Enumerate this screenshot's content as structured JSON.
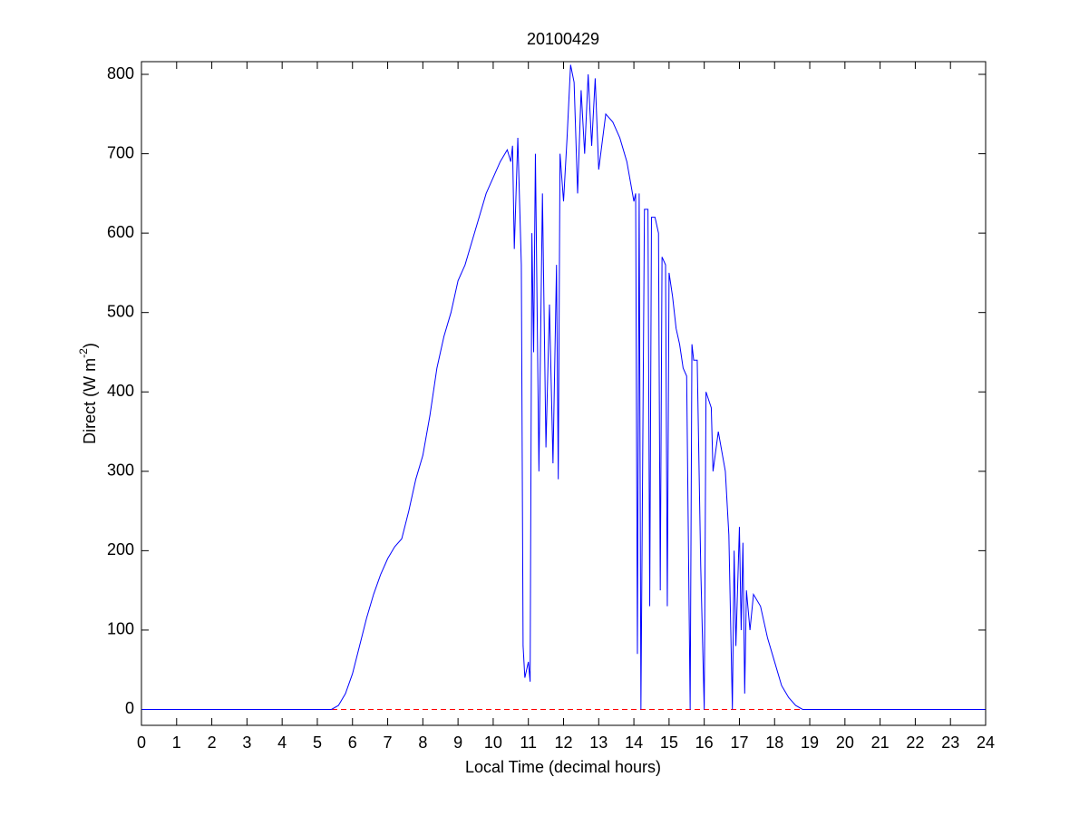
{
  "chart_data": {
    "type": "line",
    "title": "20100429",
    "xlabel": "Local Time (decimal hours)",
    "ylabel": [
      "Direct (W m",
      "-2",
      ")"
    ],
    "x": [
      0,
      1,
      2,
      3,
      4,
      5,
      5.4,
      5.6,
      5.8,
      6.0,
      6.2,
      6.4,
      6.6,
      6.8,
      7.0,
      7.2,
      7.4,
      7.6,
      7.8,
      8.0,
      8.2,
      8.4,
      8.6,
      8.8,
      9.0,
      9.2,
      9.4,
      9.6,
      9.8,
      10.0,
      10.2,
      10.4,
      10.5,
      10.55,
      10.6,
      10.7,
      10.8,
      10.85,
      10.9,
      11.0,
      11.05,
      11.1,
      11.15,
      11.2,
      11.3,
      11.4,
      11.5,
      11.6,
      11.7,
      11.8,
      11.85,
      11.9,
      12.0,
      12.1,
      12.2,
      12.3,
      12.4,
      12.5,
      12.6,
      12.7,
      12.8,
      12.9,
      13.0,
      13.2,
      13.4,
      13.6,
      13.8,
      14.0,
      14.05,
      14.1,
      14.15,
      14.2,
      14.3,
      14.4,
      14.45,
      14.5,
      14.6,
      14.7,
      14.75,
      14.8,
      14.9,
      14.95,
      15.0,
      15.1,
      15.2,
      15.3,
      15.4,
      15.5,
      15.6,
      15.65,
      15.7,
      15.8,
      15.9,
      16.0,
      16.05,
      16.2,
      16.25,
      16.4,
      16.6,
      16.7,
      16.8,
      16.85,
      16.9,
      17.0,
      17.05,
      17.1,
      17.15,
      17.2,
      17.3,
      17.4,
      17.6,
      17.8,
      18.0,
      18.2,
      18.4,
      18.6,
      18.8,
      19,
      20,
      21,
      22,
      23,
      24
    ],
    "series": [
      {
        "color": "#0000ff",
        "values": [
          0,
          0,
          0,
          0,
          0,
          0,
          0,
          5,
          20,
          45,
          80,
          115,
          145,
          170,
          190,
          205,
          215,
          250,
          290,
          320,
          370,
          430,
          470,
          500,
          540,
          560,
          590,
          620,
          650,
          670,
          690,
          705,
          690,
          710,
          580,
          720,
          560,
          80,
          40,
          60,
          35,
          600,
          450,
          700,
          300,
          650,
          330,
          510,
          310,
          560,
          290,
          700,
          640,
          720,
          812,
          790,
          650,
          780,
          700,
          800,
          710,
          795,
          680,
          750,
          740,
          720,
          690,
          640,
          650,
          70,
          650,
          0,
          630,
          630,
          130,
          620,
          620,
          600,
          150,
          570,
          560,
          130,
          550,
          520,
          480,
          460,
          430,
          420,
          0,
          460,
          440,
          440,
          180,
          0,
          400,
          380,
          300,
          350,
          300,
          220,
          0,
          200,
          80,
          230,
          100,
          210,
          20,
          150,
          100,
          145,
          130,
          90,
          60,
          30,
          15,
          5,
          0,
          0,
          0,
          0,
          0,
          0,
          0
        ]
      }
    ],
    "hline": 0,
    "hline_color": "#ff0000",
    "xlim": [
      0,
      24
    ],
    "xticks": [
      0,
      1,
      2,
      3,
      4,
      5,
      6,
      7,
      8,
      9,
      10,
      11,
      12,
      13,
      14,
      15,
      16,
      17,
      18,
      19,
      20,
      21,
      22,
      23,
      24
    ],
    "ylim": [
      -20,
      816
    ],
    "yticks": [
      0,
      100,
      200,
      300,
      400,
      500,
      600,
      700,
      800
    ]
  }
}
